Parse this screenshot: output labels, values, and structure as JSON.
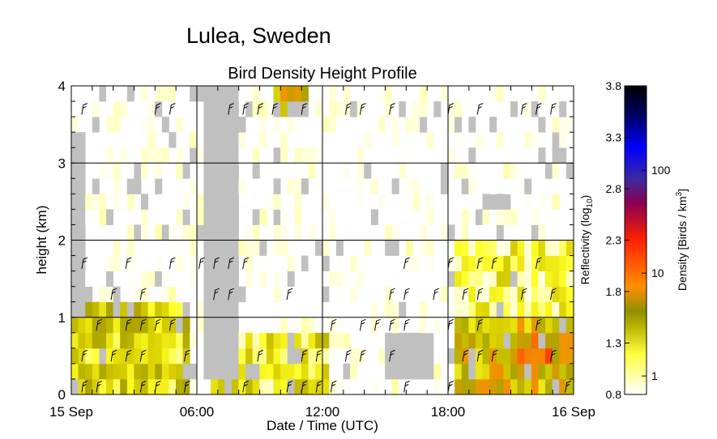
{
  "header": {
    "location": "Lulea, Sweden"
  },
  "chart_data": {
    "type": "heatmap",
    "title": "Bird Density Height Profile",
    "xlabel": "Date / Time (UTC)",
    "ylabel": "height (km)",
    "x_ticks": [
      "15 Sep",
      "06:00",
      "12:00",
      "18:00",
      "16 Sep"
    ],
    "x_range_hours": [
      0,
      24
    ],
    "y_ticks": [
      "0",
      "1",
      "2",
      "3",
      "4"
    ],
    "ylim": [
      0,
      4
    ],
    "grid": true,
    "time_resolution_hours": 0.333,
    "height_resolution_km": 0.2,
    "colorbar": {
      "left_label": "Reflectivity (log",
      "left_label_subscript": "10",
      "left_label_end": ")",
      "left_ticks": [
        "0.8",
        "1.3",
        "1.8",
        "2.3",
        "2.8",
        "3.3",
        "3.8"
      ],
      "left_tick_values": [
        0.8,
        1.3,
        1.8,
        2.3,
        2.8,
        3.3,
        3.8
      ],
      "right_label": "Density [Birds / km",
      "right_label_superscript": "3",
      "right_label_end": "]",
      "right_ticks": [
        "1",
        "10",
        "100"
      ],
      "right_tick_values": [
        1,
        10,
        100
      ],
      "range": [
        0.8,
        3.8
      ],
      "colors": [
        "#ffffff",
        "#ffff00",
        "#a0a000",
        "#ff8c00",
        "#ff0000",
        "#8b0046",
        "#0000ff",
        "#00007a",
        "#000000"
      ]
    },
    "no_data_color": "#c0c0c0",
    "dense_regions_log_reflectivity": [
      {
        "t_start_h": 0.0,
        "t_end_h": 5.5,
        "h_min_km": 0.0,
        "h_max_km": 1.2,
        "level": 1.4
      },
      {
        "t_start_h": 6.5,
        "t_end_h": 12.0,
        "h_min_km": 0.0,
        "h_max_km": 0.8,
        "level": 1.3
      },
      {
        "t_start_h": 9.5,
        "t_end_h": 11.3,
        "h_min_km": 3.5,
        "h_max_km": 4.0,
        "level": 1.6
      },
      {
        "t_start_h": 18.0,
        "t_end_h": 24.0,
        "h_min_km": 0.0,
        "h_max_km": 1.0,
        "level": 1.6
      },
      {
        "t_start_h": 21.3,
        "t_end_h": 23.5,
        "h_min_km": 0.4,
        "h_max_km": 0.8,
        "level": 1.95
      },
      {
        "t_start_h": 18.0,
        "t_end_h": 24.0,
        "h_min_km": 1.0,
        "h_max_km": 2.0,
        "level": 1.2
      }
    ],
    "no_data_regions": [
      {
        "t_start_h": 6.0,
        "t_end_h": 7.7,
        "h_min_km": 0.2,
        "h_max_km": 4.0
      },
      {
        "t_start_h": 0.0,
        "t_end_h": 0.6,
        "h_min_km": 1.0,
        "h_max_km": 3.4
      },
      {
        "t_start_h": 14.7,
        "t_end_h": 17.3,
        "h_min_km": 0.2,
        "h_max_km": 0.8
      }
    ],
    "wind_barb_rows_km": [
      0.1,
      0.5,
      0.9,
      1.3,
      1.7,
      3.7
    ]
  }
}
